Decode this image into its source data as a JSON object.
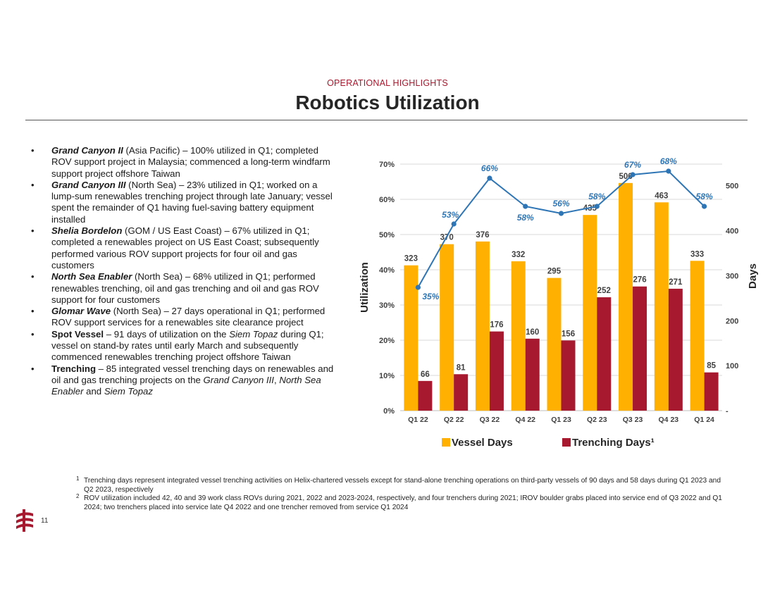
{
  "header": {
    "section_label": "OPERATIONAL HIGHLIGHTS",
    "title": "Robotics Utilization"
  },
  "bullets": [
    {
      "name": "Grand Canyon II",
      "region": " (Asia Pacific)",
      "text": " – 100% utilized in Q1; completed ROV support project in Malaysia; commenced a long-term windfarm support project offshore Taiwan"
    },
    {
      "name": "Grand Canyon III",
      "region": " (North Sea)",
      "text": " – 23% utilized in Q1; worked on a lump-sum renewables trenching project through late January; vessel spent the remainder of Q1 having fuel-saving battery equipment installed"
    },
    {
      "name": "Shelia Bordelon",
      "region": " (GOM / US East Coast)",
      "text": " – 67% utilized in Q1; completed a renewables project on US East Coast; subsequently performed various ROV support projects for four oil and gas customers"
    },
    {
      "name": "North Sea Enabler",
      "region": " (North Sea)",
      "text": " – 68% utilized in Q1; performed renewables trenching, oil and gas trenching and oil and gas ROV support for four customers"
    },
    {
      "name": "Glomar Wave",
      "region": " (North Sea)",
      "text": " – 27 days operational in Q1; performed ROV support services for a renewables site clearance project"
    },
    {
      "name": "Spot Vessel",
      "text_a": " – 91 days of utilization on the ",
      "italic": "Siem Topaz",
      "text_b": " during Q1; vessel on stand-by rates until early March and subsequently commenced renewables trenching project offshore Taiwan"
    },
    {
      "name": "Trenching",
      "text_a": " – 85 integrated vessel trenching days on renewables and oil and gas trenching projects on the ",
      "italic_a": "Grand Canyon III",
      "sep": ", ",
      "italic_b": "North Sea Enabler",
      "and": " and ",
      "italic_c": "Siem Topaz"
    }
  ],
  "chart_data": {
    "type": "bar",
    "categories": [
      "Q1 22",
      "Q2 22",
      "Q3 22",
      "Q4 22",
      "Q1 23",
      "Q2 23",
      "Q3 23",
      "Q4 23",
      "Q1 24"
    ],
    "series": [
      {
        "name": "Vessel Days",
        "axis": "right",
        "color": "#ffb000",
        "values": [
          323,
          370,
          376,
          332,
          295,
          435,
          506,
          463,
          333
        ]
      },
      {
        "name": "Trenching Days¹",
        "axis": "right",
        "color": "#a6192e",
        "values": [
          66,
          81,
          176,
          160,
          156,
          252,
          276,
          271,
          85
        ]
      },
      {
        "name": "Utilization",
        "type": "line",
        "axis": "left",
        "color": "#2e75b6",
        "values": [
          35,
          53,
          66,
          58,
          56,
          58,
          67,
          68,
          58
        ],
        "labels": [
          "35%",
          "53%",
          "66%",
          "58%",
          "56%",
          "58%",
          "67%",
          "68%",
          "58%"
        ]
      }
    ],
    "ylabel": "Utilization",
    "y2label": "Days",
    "ylim": [
      0,
      70
    ],
    "y2lim": [
      0,
      548
    ],
    "yticks": [
      "0%",
      "10%",
      "20%",
      "30%",
      "40%",
      "50%",
      "60%",
      "70%"
    ],
    "y2ticks": [
      "-",
      "100",
      "200",
      "300",
      "400",
      "500"
    ],
    "legend": [
      "Vessel Days",
      "Trenching Days¹"
    ],
    "legend_position": "bottom"
  },
  "footnotes": [
    {
      "mark": "1",
      "text": "Trenching days represent integrated vessel trenching activities on Helix-chartered vessels except for stand-alone trenching operations on third-party vessels of 90 days and 58 days during Q1 2023 and Q2 2023, respectively"
    },
    {
      "mark": "2",
      "text": "ROV utilization included 42, 40 and 39 work class ROVs during 2021, 2022 and 2023-2024, respectively, and four trenchers during 2021; IROV boulder grabs placed into service end of Q3 2022 and Q1 2024; two trenchers placed into service late Q4 2022 and one trencher removed from service Q1 2024"
    }
  ],
  "page_number": "11",
  "colors": {
    "accent": "#a6192e",
    "vessel": "#ffb000",
    "trenching": "#a6192e",
    "line": "#2e75b6"
  }
}
